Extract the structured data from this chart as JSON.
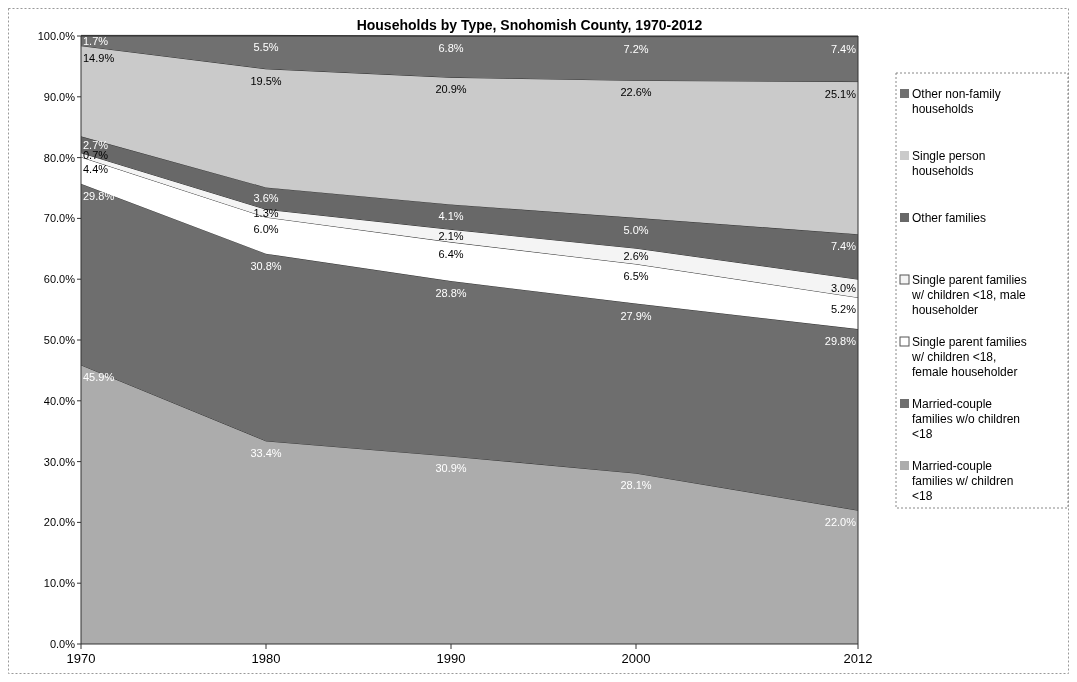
{
  "chart_data": {
    "type": "area",
    "stacked": true,
    "title": "Households by Type, Snohomish County, 1970-2012",
    "x": [
      1970,
      1980,
      1990,
      2000,
      2012
    ],
    "xlim": [
      1970,
      2012
    ],
    "xticks": [
      1970,
      1980,
      1990,
      2000,
      2012
    ],
    "ylim": [
      0,
      100
    ],
    "yticks": [
      {
        "value": 0,
        "label": "0.0%"
      },
      {
        "value": 10,
        "label": "10.0%"
      },
      {
        "value": 20,
        "label": "20.0%"
      },
      {
        "value": 30,
        "label": "30.0%"
      },
      {
        "value": 40,
        "label": "40.0%"
      },
      {
        "value": 50,
        "label": "50.0%"
      },
      {
        "value": 60,
        "label": "60.0%"
      },
      {
        "value": 70,
        "label": "70.0%"
      },
      {
        "value": 80,
        "label": "80.0%"
      },
      {
        "value": 90,
        "label": "90.0%"
      },
      {
        "value": 100,
        "label": "100.0%"
      }
    ],
    "legend": "right",
    "grid": false,
    "series": [
      {
        "name": "Married-couple families w/ children <18",
        "color": "#acacac",
        "values": [
          45.9,
          33.4,
          30.9,
          28.1,
          22.0
        ],
        "value_labels": [
          "45.9%",
          "33.4%",
          "30.9%",
          "28.1%",
          "22.0%"
        ]
      },
      {
        "name": "Married-couple families w/o children <18",
        "color": "#6e6e6e",
        "values": [
          29.8,
          30.8,
          28.8,
          27.9,
          29.8
        ],
        "value_labels": [
          "29.8%",
          "30.8%",
          "28.8%",
          "27.9%",
          "29.8%"
        ]
      },
      {
        "name": "Single parent families w/ children <18, female householder",
        "color": "#ffffff",
        "values": [
          4.4,
          6.0,
          6.4,
          6.5,
          5.2
        ],
        "value_labels": [
          "4.4%",
          "6.0%",
          "6.4%",
          "6.5%",
          "5.2%"
        ]
      },
      {
        "name": "Single parent families w/ children <18, male householder",
        "color": "#f4f4f4",
        "values": [
          0.7,
          1.3,
          2.1,
          2.6,
          3.0
        ],
        "value_labels": [
          "0.7%",
          "1.3%",
          "2.1%",
          "2.6%",
          "3.0%"
        ]
      },
      {
        "name": "Other families",
        "color": "#686868",
        "values": [
          2.7,
          3.6,
          4.1,
          5.0,
          7.4
        ],
        "value_labels": [
          "2.7%",
          "3.6%",
          "4.1%",
          "5.0%",
          "7.4%"
        ]
      },
      {
        "name": "Single person households",
        "color": "#cacaca",
        "values": [
          14.9,
          19.5,
          20.9,
          22.6,
          25.1
        ],
        "value_labels": [
          "14.9%",
          "19.5%",
          "20.9%",
          "22.6%",
          "25.1%"
        ]
      },
      {
        "name": "Other non-family households",
        "color": "#707070",
        "values": [
          1.7,
          5.5,
          6.8,
          7.2,
          7.4
        ],
        "value_labels": [
          "1.7%",
          "5.5%",
          "6.8%",
          "7.2%",
          "7.4%"
        ]
      }
    ]
  }
}
